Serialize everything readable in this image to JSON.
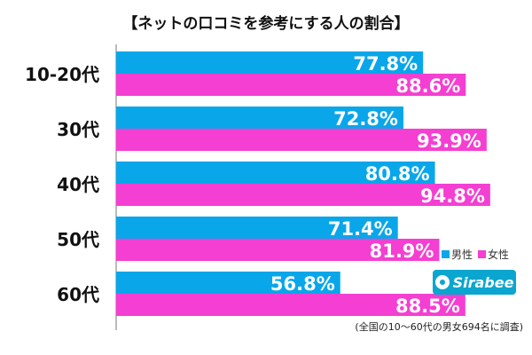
{
  "chart_data": {
    "type": "bar",
    "orientation": "horizontal",
    "title": "【ネットの口コミを参考にする人の割合】",
    "categories": [
      "10-20代",
      "30代",
      "40代",
      "50代",
      "60代"
    ],
    "series": [
      {
        "name": "男性",
        "color": "#0aa6ea",
        "values": [
          77.8,
          72.8,
          80.8,
          71.4,
          56.8
        ]
      },
      {
        "name": "女性",
        "color": "#f43fd2",
        "values": [
          88.6,
          93.9,
          94.8,
          81.9,
          88.5
        ]
      }
    ],
    "value_suffix": "%",
    "xlim": [
      0,
      100
    ],
    "legend_position": "right",
    "note": "(全国の10〜60代の男女694名に調査)"
  },
  "brand": {
    "logo_text": "Sirabee"
  }
}
